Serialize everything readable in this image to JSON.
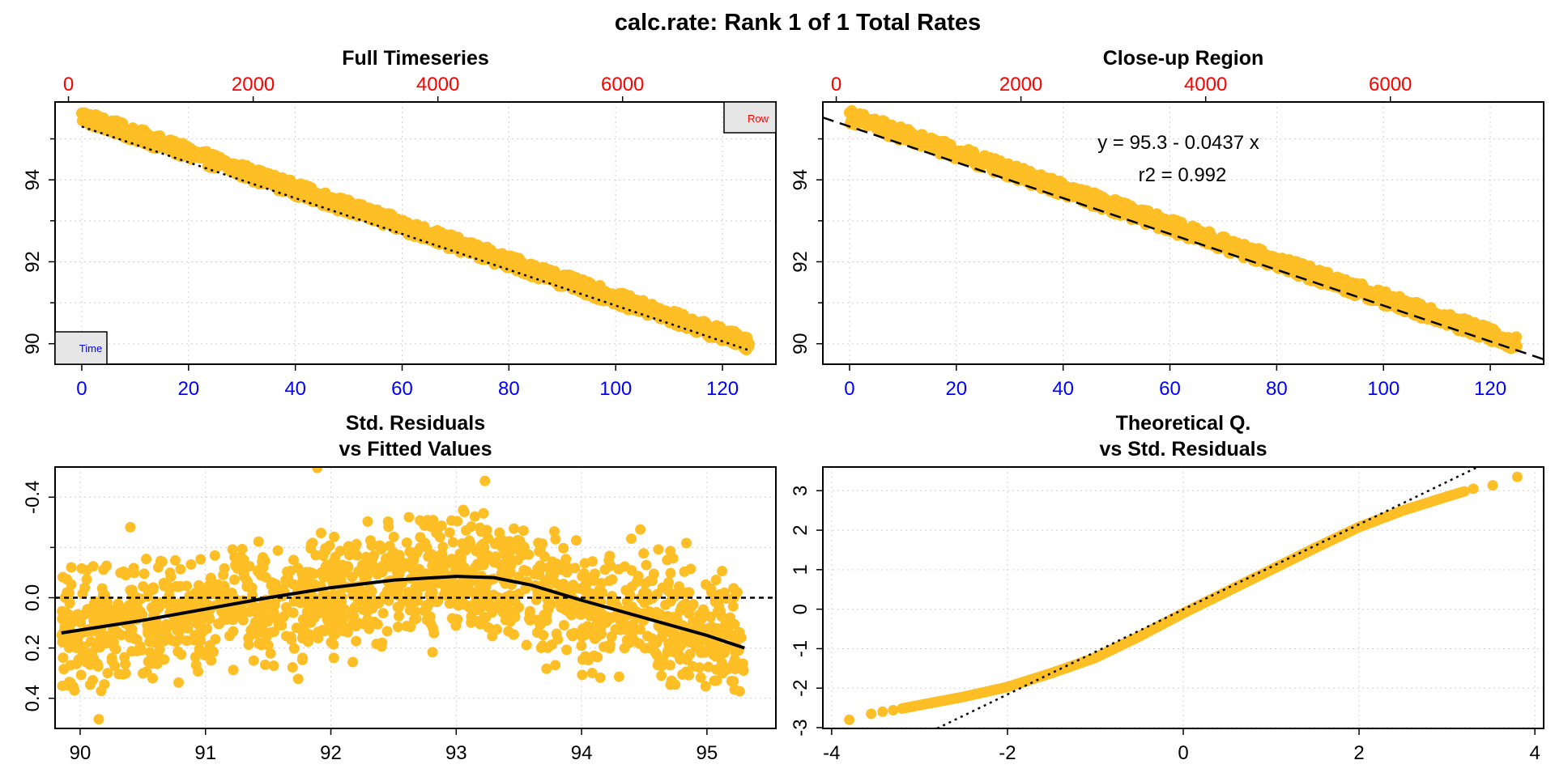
{
  "page": {
    "main_title": "calc.rate: Rank 1 of 1 Total Rates",
    "point_color": "#fdbf25",
    "fit_color": "#000000",
    "time_axis_color": "#0000ff",
    "row_axis_color": "#ff0000"
  },
  "chart_data": [
    {
      "id": "full_timeseries",
      "type": "scatter",
      "title": "Full Timeseries",
      "x_label": "",
      "y_label": "",
      "x_range": [
        -5,
        130
      ],
      "y_range": [
        89.5,
        95.9
      ],
      "x_ticks": [
        0,
        20,
        40,
        60,
        80,
        100,
        120
      ],
      "x_tick_labels": [
        "0",
        "20",
        "40",
        "60",
        "80",
        "100",
        "120"
      ],
      "x_tick_color": "#0000ff",
      "y_ticks": [
        90,
        92,
        94
      ],
      "y_tick_labels": [
        "90",
        "92",
        "94"
      ],
      "y_minor_ticks": [
        91,
        93,
        95
      ],
      "top_axis_range": [
        -145,
        7660
      ],
      "top_ticks": [
        0,
        2000,
        4000,
        6000
      ],
      "top_tick_labels": [
        "0",
        "2000",
        "4000",
        "6000"
      ],
      "top_tick_color": "#ff0000",
      "legend_time": "Time",
      "legend_row": "Row",
      "series": [
        {
          "kind": "points",
          "linear": true,
          "x_start": 0,
          "x_end": 125,
          "y_start": 95.55,
          "y_end": 90.0,
          "band": 0.35
        },
        {
          "kind": "line",
          "style": "dotted",
          "x": [
            0,
            125
          ],
          "y": [
            95.3,
            89.84
          ]
        }
      ]
    },
    {
      "id": "closeup_region",
      "type": "scatter",
      "title": "Close-up Region",
      "x_label": "",
      "y_label": "",
      "x_range": [
        -5,
        130
      ],
      "y_range": [
        89.5,
        95.9
      ],
      "x_ticks": [
        0,
        20,
        40,
        60,
        80,
        100,
        120
      ],
      "x_tick_labels": [
        "0",
        "20",
        "40",
        "60",
        "80",
        "100",
        "120"
      ],
      "x_tick_color": "#0000ff",
      "y_ticks": [
        90,
        92,
        94
      ],
      "y_tick_labels": [
        "90",
        "92",
        "94"
      ],
      "y_minor_ticks": [
        91,
        93,
        95
      ],
      "top_axis_range": [
        -145,
        7660
      ],
      "top_ticks": [
        0,
        2000,
        4000,
        6000
      ],
      "top_tick_labels": [
        "0",
        "2000",
        "4000",
        "6000"
      ],
      "top_tick_color": "#ff0000",
      "annotation_equation": "y = 95.3 - 0.0437 x",
      "annotation_r2": "r2 = 0.992",
      "series": [
        {
          "kind": "points",
          "linear": true,
          "x_start": 0,
          "x_end": 125,
          "y_start": 95.55,
          "y_end": 90.0,
          "band": 0.35
        },
        {
          "kind": "line",
          "style": "dashed",
          "x": [
            -5,
            130
          ],
          "y": [
            95.52,
            89.62
          ]
        }
      ]
    },
    {
      "id": "residuals_vs_fitted",
      "type": "scatter",
      "title_line1": "Std. Residuals",
      "title_line2": "vs Fitted Values",
      "x_label": "",
      "y_label": "",
      "x_range": [
        89.8,
        95.55
      ],
      "y_range": [
        0.52,
        -0.52
      ],
      "x_ticks": [
        90,
        91,
        92,
        93,
        94,
        95
      ],
      "x_tick_labels": [
        "90",
        "91",
        "92",
        "93",
        "94",
        "95"
      ],
      "y_ticks": [
        0.4,
        0.2,
        0.0,
        -0.4
      ],
      "y_tick_labels": [
        "0.4",
        "0.2",
        "0.0",
        "-0.4"
      ],
      "y_minor_ticks": [
        -0.2
      ],
      "reference_y": 0,
      "series": [
        {
          "kind": "points",
          "curve": true,
          "x_start": 89.85,
          "x_end": 95.3,
          "trend_x": [
            89.85,
            90.5,
            91.0,
            91.5,
            92.0,
            92.5,
            93.0,
            93.3,
            93.6,
            94.0,
            94.5,
            95.0,
            95.3
          ],
          "trend_y": [
            0.14,
            0.09,
            0.045,
            0.0,
            -0.04,
            -0.07,
            -0.085,
            -0.08,
            -0.05,
            0.01,
            0.08,
            0.15,
            0.2
          ],
          "band": 0.2
        },
        {
          "kind": "line",
          "style": "solid",
          "x": [
            89.85,
            90.5,
            91.0,
            91.5,
            92.0,
            92.5,
            93.0,
            93.3,
            93.6,
            94.0,
            94.5,
            95.0,
            95.3
          ],
          "y": [
            0.14,
            0.09,
            0.045,
            0.0,
            -0.04,
            -0.07,
            -0.085,
            -0.08,
            -0.05,
            0.01,
            0.08,
            0.15,
            0.2
          ]
        }
      ]
    },
    {
      "id": "qq_plot",
      "type": "scatter",
      "title_line1": "Theoretical Q.",
      "title_line2": "vs Std. Residuals",
      "x_label": "",
      "y_label": "",
      "x_range": [
        -4.1,
        4.1
      ],
      "y_range": [
        -3.02,
        3.6
      ],
      "x_ticks": [
        -4,
        -2,
        0,
        2,
        4
      ],
      "x_tick_labels": [
        "-4",
        "-2",
        "0",
        "2",
        "4"
      ],
      "y_ticks": [
        -3,
        -2,
        -1,
        0,
        1,
        2,
        3
      ],
      "y_tick_labels": [
        "-3",
        "-2",
        "-1",
        "0",
        "1",
        "2",
        "3"
      ],
      "series": [
        {
          "kind": "points",
          "qq": true,
          "x": [
            -3.8,
            -3.5,
            -3.3,
            -3.0,
            -2.5,
            -2.0,
            -1.5,
            -1.0,
            -0.5,
            0.0,
            0.5,
            1.0,
            1.5,
            2.0,
            2.5,
            3.0,
            3.3,
            3.5,
            3.8
          ],
          "y": [
            -2.8,
            -2.62,
            -2.56,
            -2.43,
            -2.22,
            -1.97,
            -1.62,
            -1.23,
            -0.69,
            -0.1,
            0.45,
            1.0,
            1.55,
            2.08,
            2.5,
            2.85,
            3.05,
            3.12,
            3.35
          ]
        },
        {
          "kind": "line",
          "style": "dotted",
          "x": [
            -2.8,
            3.35
          ],
          "y": [
            -3.02,
            3.6
          ]
        }
      ]
    }
  ]
}
